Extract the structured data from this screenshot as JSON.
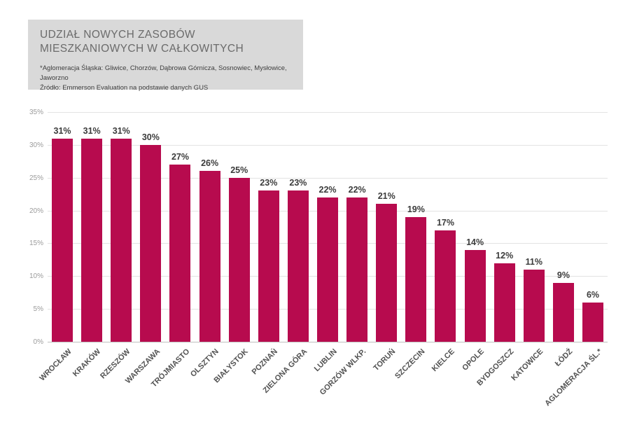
{
  "header": {
    "title_lines": [
      "UDZIAŁ NOWYCH ZASOBÓW",
      "MIESZKANIOWYCH W CAŁKOWITYCH"
    ],
    "footnote_lines": [
      "*Aglomeracja Śląska: Gliwice, Chorzów, Dąbrowa Górnicza, Sosnowiec, Mysłowice, Jaworzno",
      "Źródło: Emmerson Evaluation na podstawie danych GUS"
    ]
  },
  "chart_data": {
    "type": "bar",
    "categories": [
      "WROCŁAW",
      "KRAKÓW",
      "RZESZÓW",
      "WARSZAWA",
      "TRÓJMIASTO",
      "OLSZTYN",
      "BIAŁYSTOK",
      "POZNAŃ",
      "ZIELONA GÓRA",
      "LUBLIN",
      "GORZÓW WLKP.",
      "TORUŃ",
      "SZCZECIN",
      "KIELCE",
      "OPOLE",
      "BYDGOSZCZ",
      "KATOWICE",
      "ŁÓDŹ",
      "AGLOMERACJA ŚL.*"
    ],
    "values": [
      31,
      31,
      31,
      30,
      27,
      26,
      25,
      23,
      23,
      22,
      22,
      21,
      19,
      17,
      14,
      12,
      11,
      9,
      6
    ],
    "value_labels": [
      "31%",
      "31%",
      "31%",
      "30%",
      "27%",
      "26%",
      "25%",
      "23%",
      "23%",
      "22%",
      "22%",
      "21%",
      "19%",
      "17%",
      "14%",
      "12%",
      "11%",
      "9%",
      "6%"
    ],
    "y_ticks": [
      {
        "label": "35%",
        "value": 35
      },
      {
        "label": "30%",
        "value": 30
      },
      {
        "label": "25%",
        "value": 25
      },
      {
        "label": "20%",
        "value": 20
      },
      {
        "label": "15%",
        "value": 15
      },
      {
        "label": "10%",
        "value": 10
      },
      {
        "label": "5%",
        "value": 5
      },
      {
        "label": "0%",
        "value": 0
      }
    ],
    "ylim": [
      0,
      35
    ],
    "grid": true,
    "legend_position": "none",
    "bar_color": "#b70b4e",
    "gridline_color": "#e3e3e3",
    "baseline_color": "#bfbfbf"
  }
}
